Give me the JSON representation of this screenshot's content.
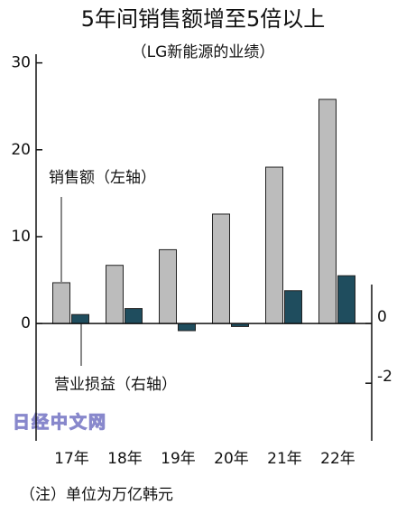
{
  "chart_data": {
    "type": "bar",
    "title": "5年间销售额增至5倍以上",
    "subtitle": "（LG新能源的业绩）",
    "note": "（注）单位为万亿韩元",
    "watermark": "日经中文网",
    "categories": [
      "17年",
      "18年",
      "19年",
      "20年",
      "21年",
      "22年"
    ],
    "series": [
      {
        "name": "销售额（左轴）",
        "color": "#bcbcbc",
        "values": [
          4.7,
          6.7,
          8.5,
          12.6,
          18,
          25.8
        ]
      },
      {
        "name": "营业损益（右轴）",
        "color": "#1f4d5e",
        "axis": "y2",
        "values": [
          0.3,
          0.5,
          -0.24,
          -0.1,
          1.1,
          1.6
        ]
      }
    ],
    "ylim": [
      -13.5,
      31
    ],
    "yticks": [
      0,
      10,
      20,
      30
    ],
    "y2lim": [
      -3.93,
      9.02
    ],
    "y2ticks": [
      0,
      -2
    ]
  }
}
